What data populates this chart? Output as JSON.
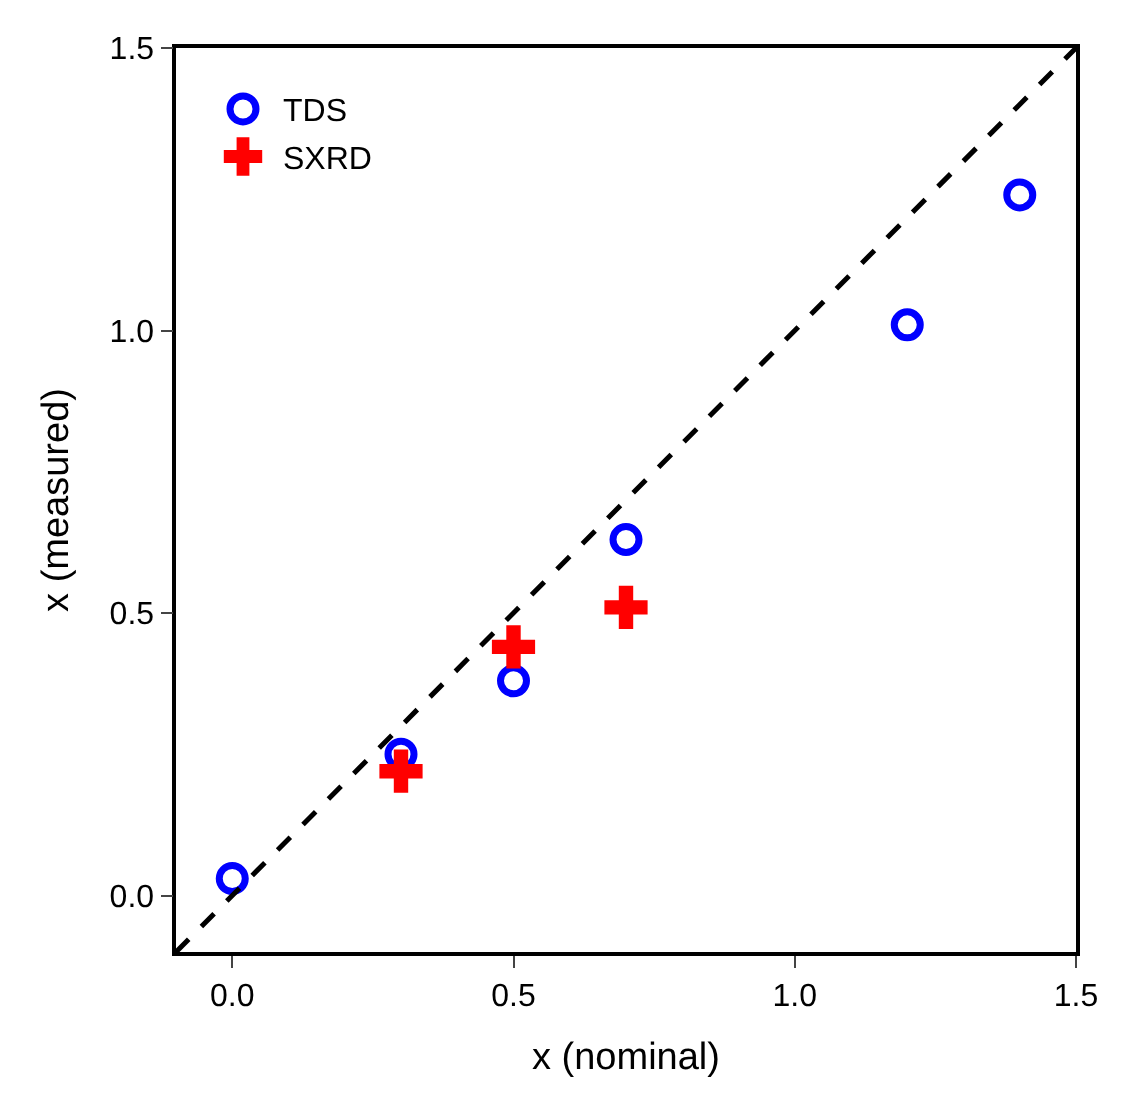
{
  "chart_data": {
    "type": "scatter",
    "xlabel": "x (nominal)",
    "ylabel": "x (measured)",
    "xlim": [
      -0.1,
      1.5
    ],
    "ylim": [
      -0.1,
      1.5
    ],
    "xticks": [
      {
        "value": 0,
        "label": "0.0"
      },
      0.5,
      {
        "value": 1,
        "label": "1.0"
      },
      1.5
    ],
    "yticks": [
      {
        "value": 0,
        "label": "0.0"
      },
      0.5,
      {
        "value": 1,
        "label": "1.0"
      },
      1.5
    ],
    "legend": "top left",
    "series": [
      {
        "name": "TDS",
        "color": "#0000ff",
        "marker": "circle",
        "x": [
          0.0,
          0.3,
          0.5,
          0.7,
          1.2,
          1.4
        ],
        "values": [
          0.03,
          0.25,
          0.38,
          0.63,
          1.01,
          1.24
        ]
      },
      {
        "name": "SXRD",
        "color": "#ff0000",
        "marker": "cross",
        "x": [
          0.3,
          0.5,
          0.7
        ],
        "values": [
          0.22,
          0.44,
          0.51
        ]
      },
      {
        "type": "line",
        "color": "#000000",
        "marker": "none",
        "line_style": "dashed",
        "x": [
          -0.1,
          1.5
        ],
        "values": [
          -0.1,
          1.5
        ]
      }
    ]
  }
}
